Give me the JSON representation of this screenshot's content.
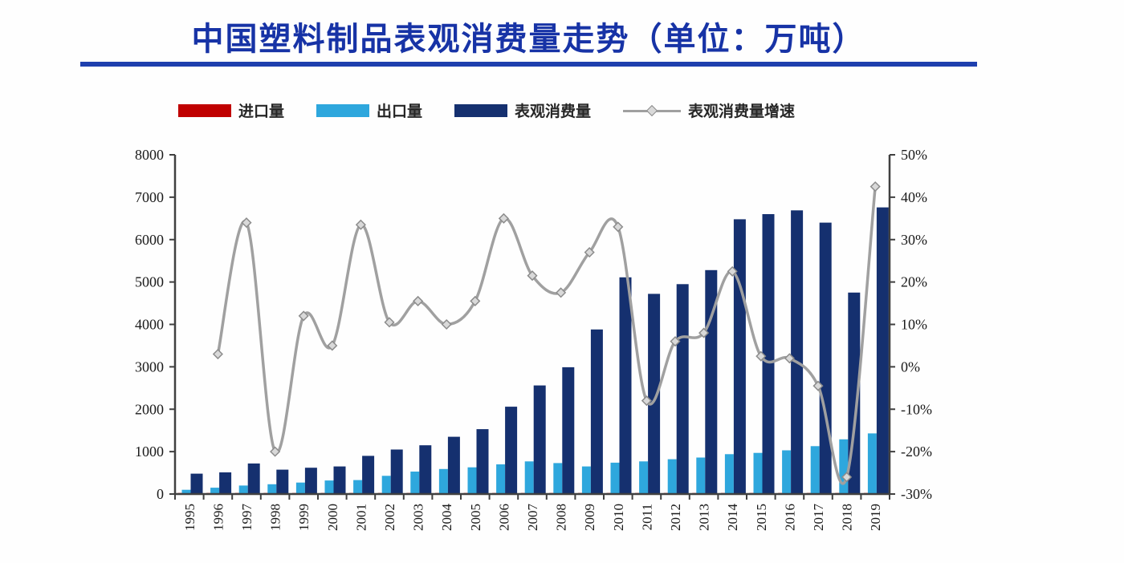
{
  "title": "中国塑料制品表观消费量走势（单位：万吨）",
  "legend": {
    "items": [
      {
        "label": "进口量",
        "swatch": "bar",
        "color": "#c00000"
      },
      {
        "label": "出口量",
        "swatch": "bar",
        "color": "#2ea7dd"
      },
      {
        "label": "表观消费量",
        "swatch": "bar",
        "color": "#15306f"
      },
      {
        "label": "表观消费量增速",
        "swatch": "line",
        "color": "#a0a0a0"
      }
    ]
  },
  "chart_data": {
    "type": "bar+line",
    "title": "中国塑料制品表观消费量走势（单位：万吨）",
    "unit": "万吨",
    "categories": [
      "1995",
      "1996",
      "1997",
      "1998",
      "1999",
      "2000",
      "2001",
      "2002",
      "2003",
      "2004",
      "2005",
      "2006",
      "2007",
      "2008",
      "2009",
      "2010",
      "2011",
      "2012",
      "2013",
      "2014",
      "2015",
      "2016",
      "2017",
      "2018",
      "2019"
    ],
    "series": [
      {
        "name": "进口量",
        "type": "bar",
        "axis": "left",
        "color": "#c00000",
        "values": [
          25,
          25,
          25,
          25,
          25,
          25,
          25,
          25,
          25,
          25,
          25,
          25,
          25,
          25,
          25,
          25,
          25,
          25,
          25,
          25,
          25,
          25,
          25,
          25,
          25
        ]
      },
      {
        "name": "出口量",
        "type": "bar",
        "axis": "left",
        "color": "#2ea7dd",
        "values": [
          100,
          150,
          200,
          230,
          270,
          320,
          330,
          430,
          530,
          590,
          630,
          700,
          770,
          730,
          650,
          740,
          770,
          820,
          860,
          940,
          970,
          1030,
          1130,
          1290,
          1430
        ]
      },
      {
        "name": "表观消费量",
        "type": "bar",
        "axis": "left",
        "color": "#15306f",
        "values": [
          480,
          510,
          720,
          575,
          620,
          650,
          900,
          1050,
          1150,
          1350,
          1530,
          2060,
          2560,
          2990,
          3880,
          5110,
          4720,
          4950,
          5280,
          6480,
          6600,
          6690,
          6400,
          4750,
          6760
        ]
      },
      {
        "name": "表观消费量增速",
        "type": "line",
        "axis": "right",
        "color": "#a0a0a0",
        "marker": "diamond",
        "values": [
          null,
          3,
          34,
          -20,
          12,
          5,
          33.5,
          10.5,
          15.5,
          10,
          15.5,
          35,
          21.5,
          17.5,
          27,
          33,
          -8,
          6,
          8,
          22.5,
          2.5,
          2,
          -4.5,
          -26,
          42.5
        ]
      }
    ],
    "left_axis": {
      "min": 0,
      "max": 8000,
      "step": 1000,
      "tick_labels": [
        "0",
        "1000",
        "2000",
        "3000",
        "4000",
        "5000",
        "6000",
        "7000",
        "8000"
      ]
    },
    "right_axis": {
      "min": -30,
      "max": 50,
      "step": 10,
      "tick_labels": [
        "-30%",
        "-20%",
        "-10%",
        "0%",
        "10%",
        "20%",
        "30%",
        "40%",
        "50%"
      ]
    },
    "grid": false,
    "legend_position": "top",
    "x_label_rotation": -90
  }
}
